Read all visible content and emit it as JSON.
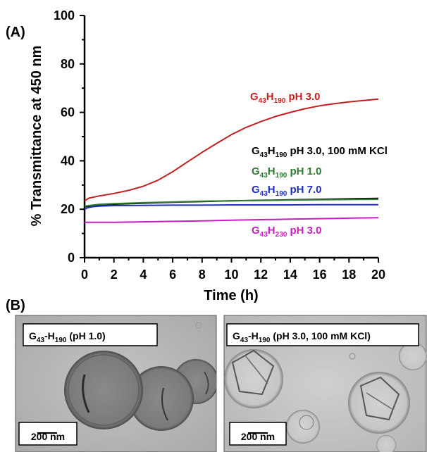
{
  "panel_a_label": "(A)",
  "panel_b_label": "(B)",
  "chart_data": {
    "type": "line",
    "xlabel": "Time (h)",
    "ylabel": "% Transmittance at 450 nm",
    "xlim": [
      0,
      20
    ],
    "ylim": [
      0,
      100
    ],
    "x_ticks": [
      0,
      2,
      4,
      6,
      8,
      10,
      12,
      14,
      16,
      18,
      20
    ],
    "y_ticks": [
      0,
      20,
      40,
      60,
      80,
      100
    ],
    "legend": "inline labels",
    "grid": false,
    "series": [
      {
        "name": "G43H190 pH 3.0",
        "label_main": "G",
        "label_sub1": "43",
        "label_mid": "H",
        "label_sub2": "190",
        "label_rest": " pH 3.0",
        "color": "#c0201f",
        "x": [
          0,
          0.3,
          1,
          2,
          3,
          4,
          5,
          6,
          7,
          8,
          9,
          10,
          11,
          12,
          13,
          14,
          15,
          16,
          17,
          18,
          19,
          20
        ],
        "y": [
          23.5,
          24.6,
          25.5,
          26.5,
          27.8,
          29.5,
          32.0,
          35.5,
          39.5,
          43.5,
          47.2,
          50.8,
          53.8,
          56.2,
          58.3,
          60.0,
          61.5,
          62.7,
          63.6,
          64.3,
          64.9,
          65.5
        ]
      },
      {
        "name": "G43H190 pH 3.0, 100 mM KCl",
        "label_main": "G",
        "label_sub1": "43",
        "label_mid": "H",
        "label_sub2": "190",
        "label_rest": " pH 3.0, 100 mM KCl",
        "color": "#000000",
        "x": [
          0,
          1,
          2,
          4,
          6,
          8,
          10,
          12,
          14,
          16,
          18,
          20
        ],
        "y": [
          21.0,
          21.8,
          22.1,
          22.5,
          22.9,
          23.2,
          23.5,
          23.7,
          23.9,
          24.1,
          24.3,
          24.5
        ]
      },
      {
        "name": "G43H190 pH 1.0",
        "label_main": "G",
        "label_sub1": "43",
        "label_mid": "H",
        "label_sub2": "190",
        "label_rest": " pH 1.0",
        "color": "#2e7d32",
        "x": [
          0,
          1,
          2,
          4,
          6,
          8,
          10,
          12,
          14,
          16,
          18,
          20
        ],
        "y": [
          21.3,
          22.0,
          22.3,
          22.7,
          23.0,
          23.3,
          23.5,
          23.6,
          23.8,
          23.9,
          24.0,
          24.1
        ]
      },
      {
        "name": "G43H190 pH 7.0",
        "label_main": "G",
        "label_sub1": "43",
        "label_mid": "H",
        "label_sub2": "190",
        "label_rest": " pH 7.0",
        "color": "#1f2fbf",
        "x": [
          0,
          0.2,
          0.5,
          1,
          2,
          4,
          6,
          8,
          10,
          12,
          14,
          16,
          18,
          20
        ],
        "y": [
          20.0,
          20.6,
          21.0,
          21.3,
          21.5,
          21.6,
          21.7,
          21.7,
          21.8,
          21.8,
          21.8,
          21.9,
          21.9,
          21.9
        ]
      },
      {
        "name": "G43H230 pH 3.0",
        "label_main": "G",
        "label_sub1": "43",
        "label_mid": "H",
        "label_sub2": "230",
        "label_rest": " pH 3.0",
        "color": "#c81fc2",
        "x": [
          0,
          2,
          4,
          6,
          8,
          10,
          12,
          14,
          16,
          18,
          20
        ],
        "y": [
          14.6,
          14.6,
          14.8,
          15.0,
          15.2,
          15.5,
          15.7,
          15.9,
          16.1,
          16.3,
          16.5
        ]
      }
    ]
  },
  "images": [
    {
      "label_main": "G",
      "label_sub1": "43",
      "label_dash": "-H",
      "label_sub2": "190",
      "label_rest": " (pH 1.0)",
      "scale_bar": "200 nm"
    },
    {
      "label_main": "G",
      "label_sub1": "43",
      "label_dash": "-H",
      "label_sub2": "190",
      "label_rest": " (pH 3.0, 100 mM KCl)",
      "scale_bar": "200 nm"
    }
  ]
}
